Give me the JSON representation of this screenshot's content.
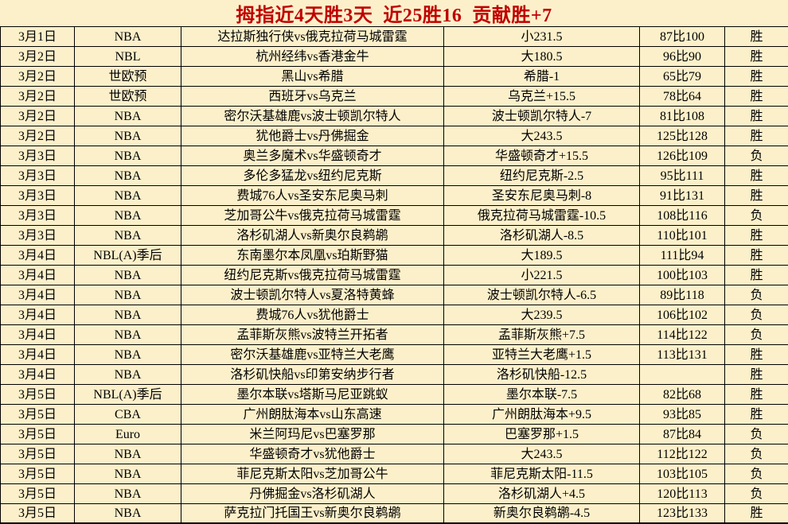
{
  "title": {
    "text": "拇指近4天胜3天  近25胜16  贡献胜+7"
  },
  "colors": {
    "title_red": "#c00000",
    "cell_bg": "#fcf0ca",
    "win_bg": "#f5c542",
    "loss_bg": "#8c8c8c",
    "border": "#000000"
  },
  "table": {
    "result_win_label": "胜",
    "result_loss_label": "负",
    "columns": [
      "date",
      "league",
      "match",
      "bet",
      "score",
      "result"
    ],
    "rows": [
      {
        "date": "3月1日",
        "league": "NBA",
        "match": "达拉斯独行侠vs俄克拉荷马城雷霆",
        "bet": "小231.5",
        "score": "87比100",
        "result": "胜"
      },
      {
        "date": "3月2日",
        "league": "NBL",
        "match": "杭州经纬vs香港金牛",
        "bet": "大180.5",
        "score": "96比90",
        "result": "胜"
      },
      {
        "date": "3月2日",
        "league": "世欧预",
        "match": "黑山vs希腊",
        "bet": "希腊-1",
        "score": "65比79",
        "result": "胜"
      },
      {
        "date": "3月2日",
        "league": "世欧预",
        "match": "西班牙vs乌克兰",
        "bet": "乌克兰+15.5",
        "score": "78比64",
        "result": "胜"
      },
      {
        "date": "3月2日",
        "league": "NBA",
        "match": "密尔沃基雄鹿vs波士顿凯尔特人",
        "bet": "波士顿凯尔特人-7",
        "score": "81比108",
        "result": "胜"
      },
      {
        "date": "3月2日",
        "league": "NBA",
        "match": "犹他爵士vs丹佛掘金",
        "bet": "大243.5",
        "score": "125比128",
        "result": "胜"
      },
      {
        "date": "3月3日",
        "league": "NBA",
        "match": "奥兰多魔术vs华盛顿奇才",
        "bet": "华盛顿奇才+15.5",
        "score": "126比109",
        "result": "负"
      },
      {
        "date": "3月3日",
        "league": "NBA",
        "match": "多伦多猛龙vs纽约尼克斯",
        "bet": "纽约尼克斯-2.5",
        "score": "95比111",
        "result": "胜"
      },
      {
        "date": "3月3日",
        "league": "NBA",
        "match": "费城76人vs圣安东尼奥马刺",
        "bet": "圣安东尼奥马刺-8",
        "score": "91比131",
        "result": "胜"
      },
      {
        "date": "3月3日",
        "league": "NBA",
        "match": "芝加哥公牛vs俄克拉荷马城雷霆",
        "bet": "俄克拉荷马城雷霆-10.5",
        "score": "108比116",
        "result": "负"
      },
      {
        "date": "3月3日",
        "league": "NBA",
        "match": "洛杉矶湖人vs新奥尔良鹈鹕",
        "bet": "洛杉矶湖人-8.5",
        "score": "110比101",
        "result": "胜"
      },
      {
        "date": "3月4日",
        "league": "NBL(A)季后",
        "match": "东南墨尔本凤凰vs珀斯野猫",
        "bet": "大189.5",
        "score": "111比94",
        "result": "胜"
      },
      {
        "date": "3月4日",
        "league": "NBA",
        "match": "纽约尼克斯vs俄克拉荷马城雷霆",
        "bet": "小221.5",
        "score": "100比103",
        "result": "胜"
      },
      {
        "date": "3月4日",
        "league": "NBA",
        "match": "波士顿凯尔特人vs夏洛特黄蜂",
        "bet": "波士顿凯尔特人-6.5",
        "score": "89比118",
        "result": "负"
      },
      {
        "date": "3月4日",
        "league": "NBA",
        "match": "费城76人vs犹他爵士",
        "bet": "大239.5",
        "score": "106比102",
        "result": "负"
      },
      {
        "date": "3月4日",
        "league": "NBA",
        "match": "孟菲斯灰熊vs波特兰开拓者",
        "bet": "孟菲斯灰熊+7.5",
        "score": "114比122",
        "result": "负"
      },
      {
        "date": "3月4日",
        "league": "NBA",
        "match": "密尔沃基雄鹿vs亚特兰大老鹰",
        "bet": "亚特兰大老鹰+1.5",
        "score": "113比131",
        "result": "胜"
      },
      {
        "date": "3月4日",
        "league": "NBA",
        "match": "洛杉矶快船vs印第安纳步行者",
        "bet": "洛杉矶快船-12.5",
        "score": "",
        "result": "胜"
      },
      {
        "date": "3月5日",
        "league": "NBL(A)季后",
        "match": "墨尔本联vs塔斯马尼亚跳蚁",
        "bet": "墨尔本联-7.5",
        "score": "82比68",
        "result": "胜"
      },
      {
        "date": "3月5日",
        "league": "CBA",
        "match": "广州朗肽海本vs山东高速",
        "bet": "广州朗肽海本+9.5",
        "score": "93比85",
        "result": "胜"
      },
      {
        "date": "3月5日",
        "league": "Euro",
        "match": "米兰阿玛尼vs巴塞罗那",
        "bet": "巴塞罗那+1.5",
        "score": "87比84",
        "result": "负"
      },
      {
        "date": "3月5日",
        "league": "NBA",
        "match": "华盛顿奇才vs犹他爵士",
        "bet": "大243.5",
        "score": "112比122",
        "result": "负"
      },
      {
        "date": "3月5日",
        "league": "NBA",
        "match": "菲尼克斯太阳vs芝加哥公牛",
        "bet": "菲尼克斯太阳-11.5",
        "score": "103比105",
        "result": "负"
      },
      {
        "date": "3月5日",
        "league": "NBA",
        "match": "丹佛掘金vs洛杉矶湖人",
        "bet": "洛杉矶湖人+4.5",
        "score": "120比113",
        "result": "负"
      },
      {
        "date": "3月5日",
        "league": "NBA",
        "match": "萨克拉门托国王vs新奥尔良鹈鹕",
        "bet": "新奥尔良鹈鹕-4.5",
        "score": "123比133",
        "result": "胜"
      }
    ]
  }
}
